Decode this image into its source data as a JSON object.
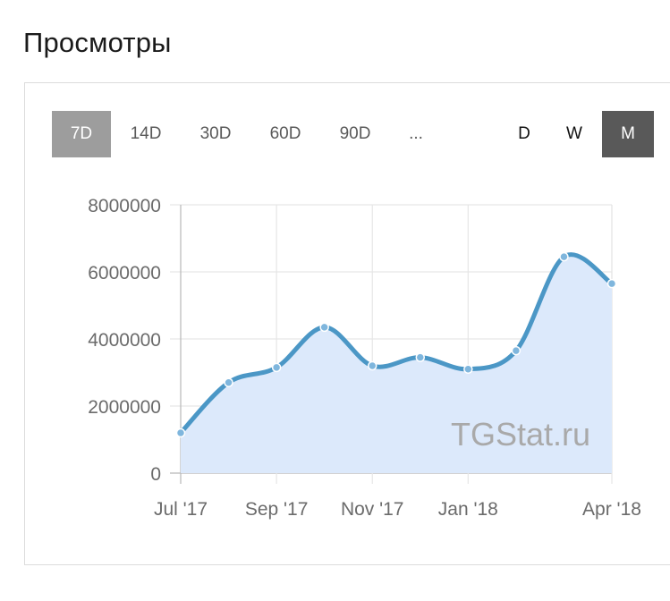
{
  "title": "Просмотры",
  "range_buttons": [
    {
      "label": "7D",
      "active": true
    },
    {
      "label": "14D",
      "active": false
    },
    {
      "label": "30D",
      "active": false
    },
    {
      "label": "60D",
      "active": false
    },
    {
      "label": "90D",
      "active": false
    },
    {
      "label": "...",
      "active": false
    }
  ],
  "granularity_buttons": [
    {
      "label": "D",
      "active": false
    },
    {
      "label": "W",
      "active": false
    },
    {
      "label": "M",
      "active": true
    }
  ],
  "colors": {
    "line": "#4b97c6",
    "area": "#dce9fb",
    "active_range": "#9d9d9d",
    "active_granularity": "#595959"
  },
  "chart_data": {
    "type": "area",
    "watermark": "TGStat.ru",
    "x": [
      "2017-07",
      "2017-08",
      "2017-09",
      "2017-10",
      "2017-11",
      "2017-12",
      "2018-01",
      "2018-02",
      "2018-03",
      "2018-04"
    ],
    "x_tick_labels": [
      {
        "x": "2017-07",
        "label": "Jul '17"
      },
      {
        "x": "2017-09",
        "label": "Sep '17"
      },
      {
        "x": "2017-11",
        "label": "Nov '17"
      },
      {
        "x": "2018-01",
        "label": "Jan '18"
      },
      {
        "x": "2018-04",
        "label": "Apr '18"
      }
    ],
    "y_ticks": [
      "0",
      "2000000",
      "4000000",
      "6000000",
      "8000000"
    ],
    "ylim": [
      0,
      8000000
    ],
    "series": [
      {
        "values": [
          1200000,
          2700000,
          3150000,
          4350000,
          3200000,
          3450000,
          3100000,
          3650000,
          6450000,
          5650000
        ]
      }
    ],
    "grid": true
  }
}
